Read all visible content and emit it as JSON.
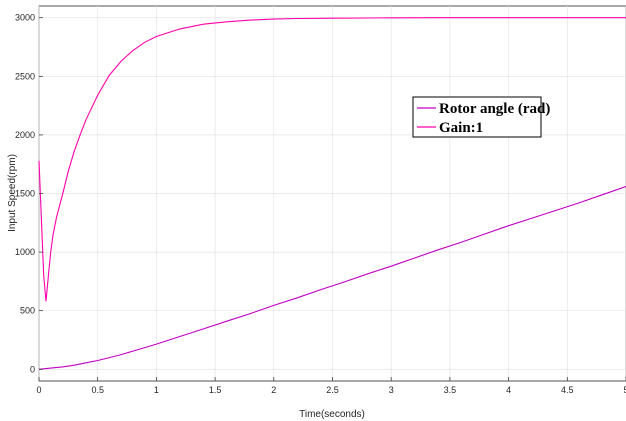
{
  "chart_data": {
    "type": "line",
    "title": "",
    "xlabel": "Time(seconds)",
    "ylabel": "Input Speed(rpm)",
    "xlim": [
      0,
      5
    ],
    "ylim": [
      -100,
      3100
    ],
    "x_ticks": [
      "0",
      "0.5",
      "1",
      "1.5",
      "2",
      "2.5",
      "3",
      "3.5",
      "4",
      "4.5",
      "5"
    ],
    "y_ticks": [
      "0",
      "500",
      "1000",
      "1500",
      "2000",
      "2500",
      "3000"
    ],
    "grid": true,
    "legend_position": "upper-right",
    "series": [
      {
        "name": "Rotor angle (rad)",
        "color": "#c000c0",
        "x": [
          0,
          0.1,
          0.2,
          0.3,
          0.4,
          0.5,
          0.6,
          0.7,
          0.8,
          0.9,
          1.0,
          1.2,
          1.4,
          1.6,
          1.8,
          2.0,
          2.2,
          2.4,
          2.6,
          2.8,
          3.0,
          3.2,
          3.4,
          3.6,
          3.8,
          4.0,
          4.2,
          4.4,
          4.6,
          4.8,
          5.0
        ],
        "values": [
          0,
          10,
          20,
          35,
          55,
          75,
          100,
          125,
          155,
          185,
          215,
          280,
          345,
          410,
          475,
          545,
          610,
          680,
          745,
          815,
          880,
          950,
          1020,
          1085,
          1155,
          1225,
          1290,
          1355,
          1420,
          1490,
          1560
        ]
      },
      {
        "name": "Gain:1",
        "color": "#ff00aa",
        "x": [
          0,
          0.02,
          0.04,
          0.06,
          0.08,
          0.1,
          0.12,
          0.15,
          0.2,
          0.25,
          0.3,
          0.35,
          0.4,
          0.5,
          0.6,
          0.7,
          0.8,
          0.9,
          1.0,
          1.2,
          1.4,
          1.6,
          1.8,
          2.0,
          2.2,
          2.5,
          2.8,
          3.0,
          3.5,
          4.0,
          4.5,
          5.0
        ],
        "values": [
          1780,
          1300,
          800,
          580,
          800,
          1000,
          1150,
          1300,
          1490,
          1690,
          1860,
          2000,
          2130,
          2340,
          2510,
          2630,
          2720,
          2790,
          2840,
          2905,
          2945,
          2965,
          2980,
          2988,
          2993,
          2996,
          2998,
          2999,
          3000,
          3000,
          3000,
          3000
        ]
      }
    ]
  }
}
